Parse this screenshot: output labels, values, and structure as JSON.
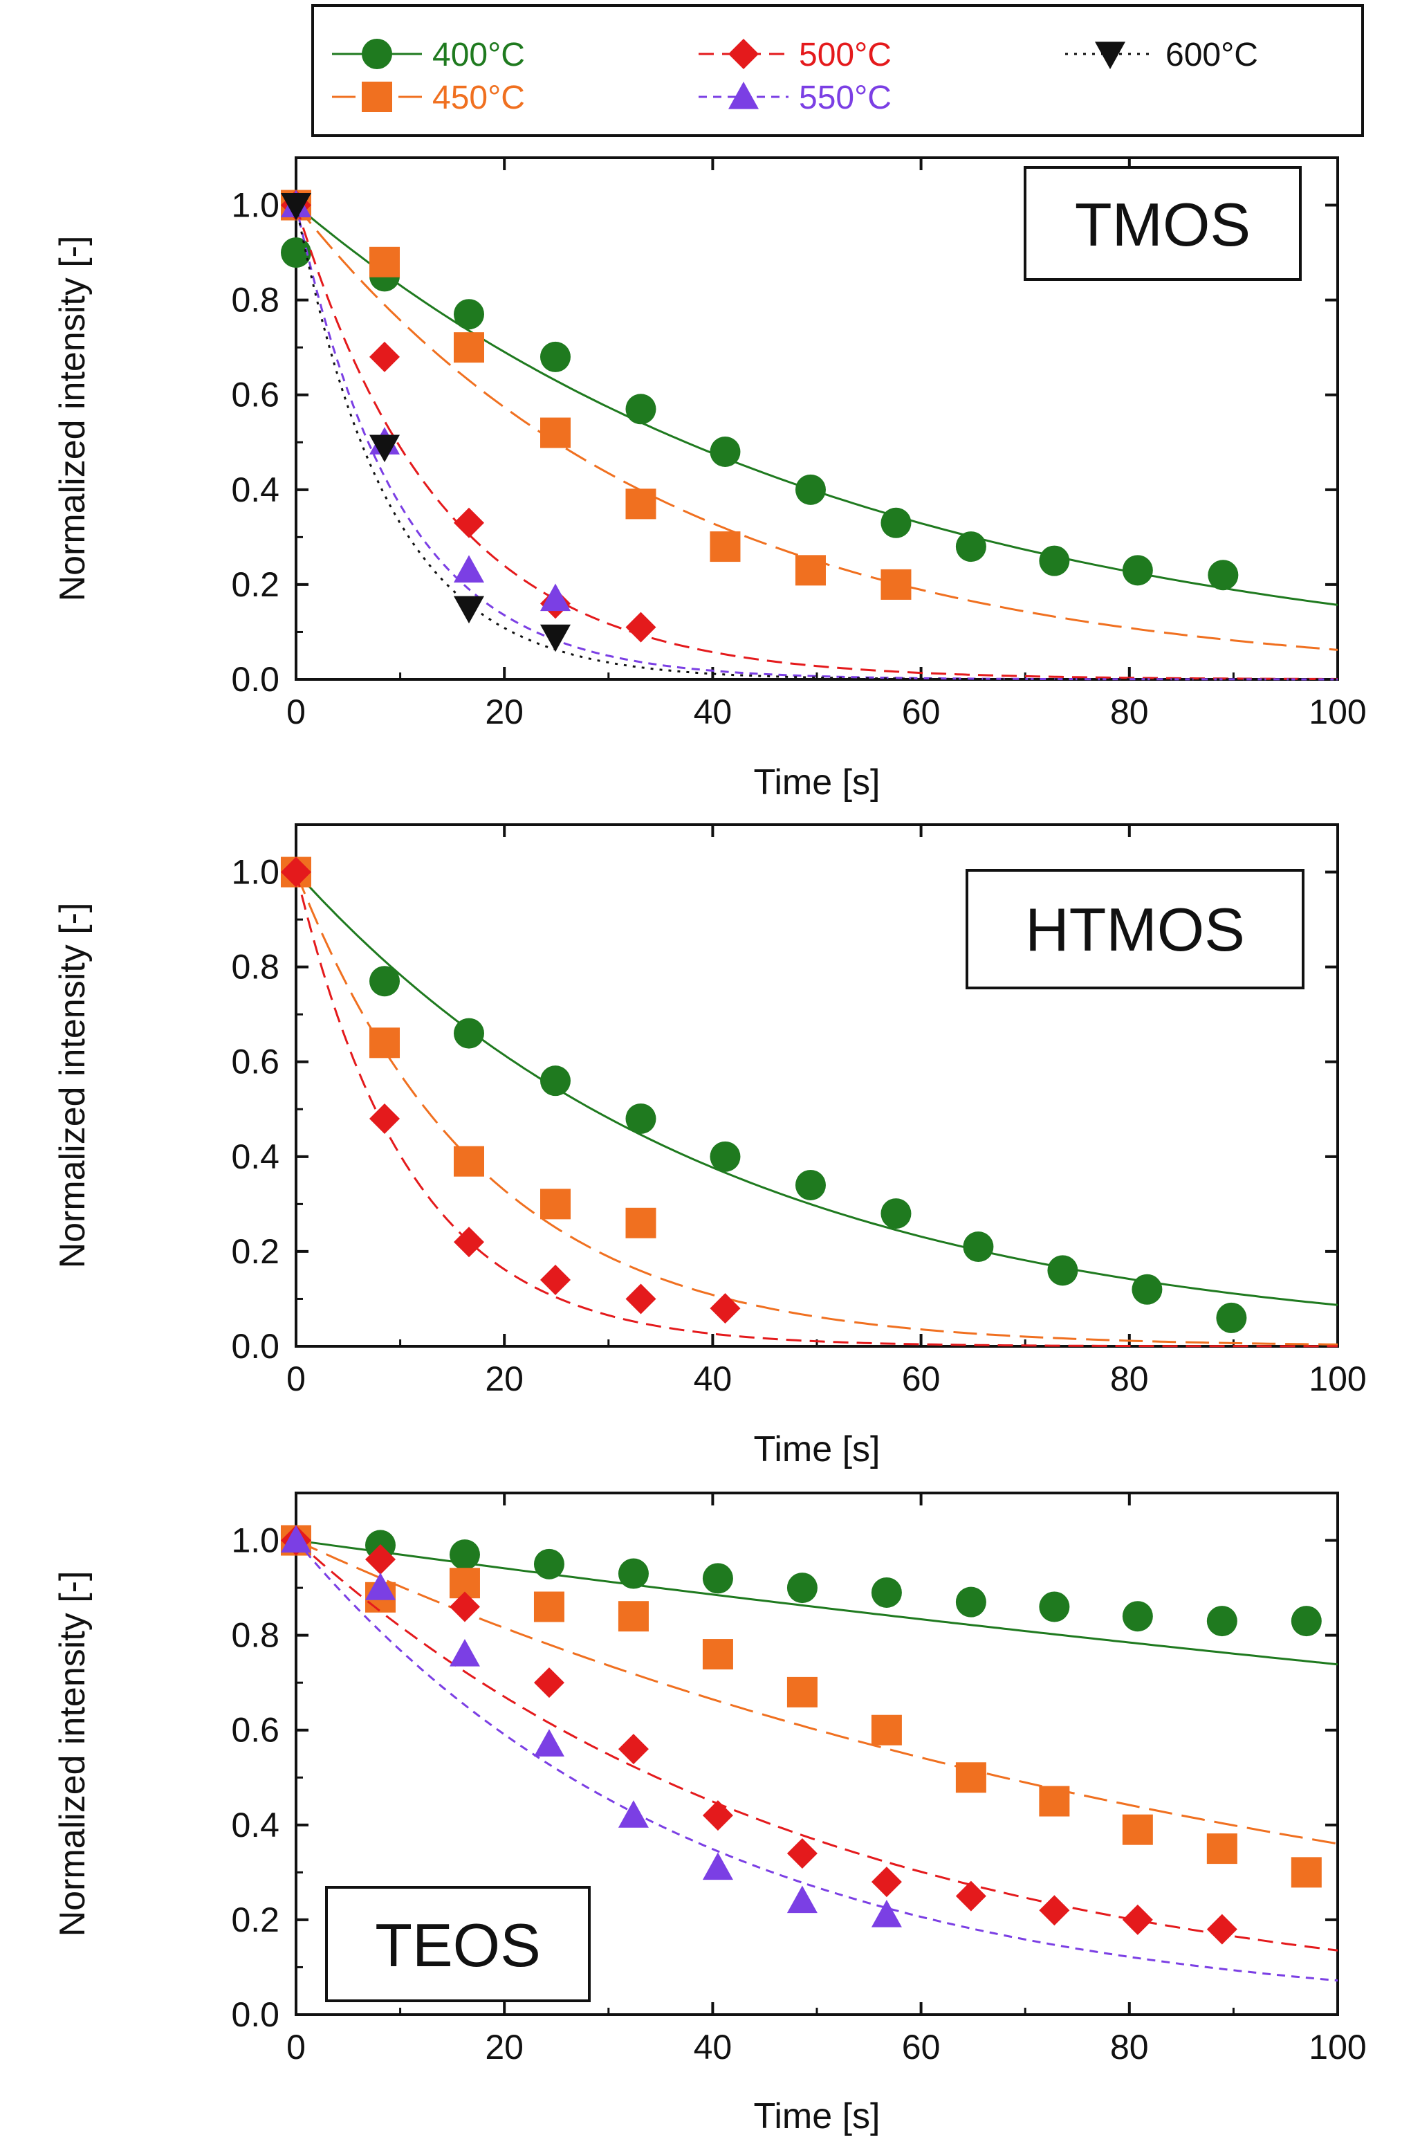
{
  "chart_data": [
    {
      "type": "scatter",
      "title": "TMOS",
      "xlabel": "Time [s]",
      "ylabel": "Normalized intensity [-]",
      "xlim": [
        0,
        100
      ],
      "ylim": [
        0,
        1.1
      ],
      "xticks": [
        "0",
        "20",
        "40",
        "60",
        "80",
        "100"
      ],
      "yticks": [
        "0.0",
        "0.2",
        "0.4",
        "0.6",
        "0.8",
        "1.0"
      ],
      "series": [
        {
          "name": "400°C",
          "points": [
            [
              0,
              0.9
            ],
            [
              8.5,
              0.85
            ],
            [
              16.6,
              0.77
            ],
            [
              24.9,
              0.68
            ],
            [
              33.1,
              0.57
            ],
            [
              41.2,
              0.48
            ],
            [
              49.4,
              0.4
            ],
            [
              57.6,
              0.33
            ],
            [
              64.8,
              0.28
            ],
            [
              72.8,
              0.25
            ],
            [
              80.8,
              0.23
            ],
            [
              89,
              0.22
            ]
          ],
          "fit_tau": 54
        },
        {
          "name": "450°C",
          "points": [
            [
              0,
              1.0
            ],
            [
              8.5,
              0.88
            ],
            [
              16.6,
              0.7
            ],
            [
              24.9,
              0.52
            ],
            [
              33.1,
              0.37
            ],
            [
              41.2,
              0.28
            ],
            [
              49.4,
              0.23
            ],
            [
              57.6,
              0.2
            ]
          ],
          "fit_tau": 36
        },
        {
          "name": "500°C",
          "points": [
            [
              0,
              1.0
            ],
            [
              8.5,
              0.68
            ],
            [
              16.6,
              0.33
            ],
            [
              24.9,
              0.16
            ],
            [
              33.1,
              0.11
            ]
          ],
          "fit_tau": 14
        },
        {
          "name": "550°C",
          "points": [
            [
              0,
              1.0
            ],
            [
              8.5,
              0.5
            ],
            [
              16.6,
              0.23
            ],
            [
              24.9,
              0.17
            ]
          ],
          "fit_tau": 10
        },
        {
          "name": "600°C",
          "points": [
            [
              0,
              1.0
            ],
            [
              8.5,
              0.49
            ],
            [
              16.6,
              0.15
            ],
            [
              24.9,
              0.09
            ]
          ],
          "fit_tau": 9
        }
      ]
    },
    {
      "type": "scatter",
      "title": "HTMOS",
      "xlabel": "Time [s]",
      "ylabel": "Normalized intensity [-]",
      "xlim": [
        0,
        100
      ],
      "ylim": [
        0,
        1.1
      ],
      "xticks": [
        "0",
        "20",
        "40",
        "60",
        "80",
        "100"
      ],
      "yticks": [
        "0.0",
        "0.2",
        "0.4",
        "0.6",
        "0.8",
        "1.0"
      ],
      "series": [
        {
          "name": "400°C",
          "points": [
            [
              0,
              1.0
            ],
            [
              8.5,
              0.77
            ],
            [
              16.6,
              0.66
            ],
            [
              24.9,
              0.56
            ],
            [
              33.1,
              0.48
            ],
            [
              41.2,
              0.4
            ],
            [
              49.4,
              0.34
            ],
            [
              57.6,
              0.28
            ],
            [
              65.5,
              0.21
            ],
            [
              73.6,
              0.16
            ],
            [
              81.7,
              0.12
            ],
            [
              89.8,
              0.06
            ]
          ],
          "fit_tau": 41
        },
        {
          "name": "450°C",
          "points": [
            [
              0,
              1.0
            ],
            [
              8.5,
              0.64
            ],
            [
              16.6,
              0.39
            ],
            [
              24.9,
              0.3
            ],
            [
              33.1,
              0.26
            ]
          ],
          "fit_tau": 18
        },
        {
          "name": "500°C",
          "points": [
            [
              0,
              1.0
            ],
            [
              8.5,
              0.48
            ],
            [
              16.6,
              0.22
            ],
            [
              24.9,
              0.14
            ],
            [
              33.1,
              0.1
            ],
            [
              41.2,
              0.08
            ]
          ],
          "fit_tau": 11
        }
      ]
    },
    {
      "type": "scatter",
      "title": "TEOS",
      "xlabel": "Time [s]",
      "ylabel": "Normalized intensity [-]",
      "xlim": [
        0,
        100
      ],
      "ylim": [
        0,
        1.1
      ],
      "xticks": [
        "0",
        "20",
        "40",
        "60",
        "80",
        "100"
      ],
      "yticks": [
        "0.0",
        "0.2",
        "0.4",
        "0.6",
        "0.8",
        "1.0"
      ],
      "series": [
        {
          "name": "400°C",
          "points": [
            [
              0,
              1.0
            ],
            [
              8.1,
              0.99
            ],
            [
              16.2,
              0.97
            ],
            [
              24.3,
              0.95
            ],
            [
              32.4,
              0.93
            ],
            [
              40.5,
              0.92
            ],
            [
              48.6,
              0.9
            ],
            [
              56.7,
              0.89
            ],
            [
              64.8,
              0.87
            ],
            [
              72.8,
              0.86
            ],
            [
              80.8,
              0.84
            ],
            [
              88.9,
              0.83
            ],
            [
              97,
              0.83
            ]
          ],
          "fit_tau": 330
        },
        {
          "name": "450°C",
          "points": [
            [
              0,
              1.0
            ],
            [
              8.1,
              0.88
            ],
            [
              16.2,
              0.91
            ],
            [
              24.3,
              0.86
            ],
            [
              32.4,
              0.84
            ],
            [
              40.5,
              0.76
            ],
            [
              48.6,
              0.68
            ],
            [
              56.7,
              0.6
            ],
            [
              64.8,
              0.5
            ],
            [
              72.8,
              0.45
            ],
            [
              80.8,
              0.39
            ],
            [
              88.9,
              0.35
            ],
            [
              97,
              0.3
            ]
          ],
          "fit_tau": 98
        },
        {
          "name": "500°C",
          "points": [
            [
              0,
              1.0
            ],
            [
              8.1,
              0.96
            ],
            [
              16.2,
              0.86
            ],
            [
              24.3,
              0.7
            ],
            [
              32.4,
              0.56
            ],
            [
              40.5,
              0.42
            ],
            [
              48.6,
              0.34
            ],
            [
              56.7,
              0.28
            ],
            [
              64.8,
              0.25
            ],
            [
              72.8,
              0.22
            ],
            [
              80.8,
              0.2
            ],
            [
              88.9,
              0.18
            ]
          ],
          "fit_tau": 50
        },
        {
          "name": "550°C",
          "points": [
            [
              0,
              1.0
            ],
            [
              8.1,
              0.9
            ],
            [
              16.2,
              0.76
            ],
            [
              24.3,
              0.57
            ],
            [
              32.4,
              0.42
            ],
            [
              40.5,
              0.31
            ],
            [
              48.6,
              0.24
            ],
            [
              56.7,
              0.21
            ]
          ],
          "fit_tau": 38
        }
      ]
    }
  ],
  "legend": {
    "placement": "top",
    "entries": [
      {
        "name": "400°C",
        "color": "#1f7a1f",
        "marker": "circle",
        "line": "solid"
      },
      {
        "name": "450°C",
        "color": "#f07020",
        "marker": "square",
        "line": "long-dash"
      },
      {
        "name": "500°C",
        "color": "#e41a1c",
        "marker": "diamond",
        "line": "dash"
      },
      {
        "name": "550°C",
        "color": "#7b3fe4",
        "marker": "triangle-up",
        "line": "short-dash"
      },
      {
        "name": "600°C",
        "color": "#111111",
        "marker": "triangle-down",
        "line": "dotted"
      }
    ]
  }
}
